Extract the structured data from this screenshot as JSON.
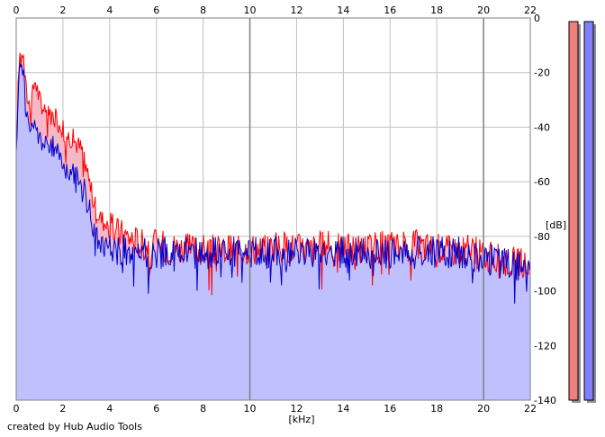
{
  "chart_data": {
    "type": "area",
    "x_unit": "[kHz]",
    "y_unit": "[dB]",
    "xlim": [
      0,
      22
    ],
    "ylim": [
      -140,
      0
    ],
    "x_ticks": [
      0,
      2,
      4,
      6,
      8,
      10,
      12,
      14,
      16,
      18,
      20,
      22
    ],
    "x_ticks_top": [
      0,
      2,
      4,
      6,
      8,
      10,
      12,
      14,
      16,
      18,
      20,
      22
    ],
    "y_ticks": [
      0,
      -20,
      -40,
      -60,
      -80,
      -100,
      -120,
      -140
    ],
    "grid": true,
    "series": [
      {
        "color": "#ff0000",
        "fill": "#f4b8c6",
        "x": [
          0,
          0.1,
          0.2,
          0.3,
          0.4,
          0.5,
          0.6,
          0.7,
          0.8,
          1,
          1.2,
          1.4,
          1.6,
          1.8,
          2,
          2.2,
          2.4,
          2.6,
          2.8,
          3,
          3.2,
          3.4,
          3.6,
          3.8,
          4,
          4.5,
          5,
          5.5,
          6,
          6.5,
          7,
          7.5,
          8,
          8.5,
          9,
          9.5,
          10,
          10.5,
          11,
          11.5,
          12,
          12.5,
          13,
          13.5,
          14,
          14.5,
          15,
          15.5,
          16,
          16.5,
          17,
          17.5,
          18,
          18.5,
          19,
          19.5,
          20,
          20.5,
          21,
          21.5,
          22
        ],
        "values": [
          -52,
          -20,
          -9,
          -14,
          -25,
          -30,
          -32,
          -28,
          -22,
          -30,
          -33,
          -35,
          -36,
          -38,
          -41,
          -43,
          -44,
          -46,
          -48,
          -54,
          -63,
          -70,
          -73,
          -75,
          -77,
          -79,
          -81,
          -83,
          -83,
          -84,
          -84,
          -85,
          -85,
          -85,
          -85,
          -85,
          -84,
          -85,
          -84,
          -84,
          -84,
          -85,
          -84,
          -84,
          -84,
          -85,
          -84,
          -84,
          -84,
          -84,
          -83,
          -84,
          -84,
          -85,
          -85,
          -85,
          -87,
          -88,
          -89,
          -90,
          -91
        ]
      },
      {
        "color": "#0000cc",
        "fill": "#c0c0ff",
        "x": [
          0,
          0.1,
          0.2,
          0.3,
          0.4,
          0.5,
          0.6,
          0.7,
          0.8,
          1,
          1.2,
          1.4,
          1.6,
          1.8,
          2,
          2.2,
          2.4,
          2.6,
          2.8,
          3,
          3.2,
          3.4,
          3.6,
          3.8,
          4,
          4.5,
          5,
          5.5,
          6,
          6.5,
          7,
          7.5,
          8,
          8.5,
          9,
          9.5,
          10,
          10.5,
          11,
          11.5,
          12,
          12.5,
          13,
          13.5,
          14,
          14.5,
          15,
          15.5,
          16,
          16.5,
          17,
          17.5,
          18,
          18.5,
          19,
          19.5,
          20,
          20.5,
          21,
          21.5,
          22
        ],
        "values": [
          -52,
          -25,
          -14,
          -20,
          -32,
          -38,
          -40,
          -42,
          -40,
          -44,
          -46,
          -48,
          -47,
          -50,
          -52,
          -55,
          -57,
          -58,
          -60,
          -64,
          -73,
          -80,
          -82,
          -84,
          -84,
          -85,
          -86,
          -86,
          -86,
          -86,
          -86,
          -86,
          -86,
          -86,
          -86,
          -86,
          -86,
          -86,
          -86,
          -86,
          -86,
          -86,
          -86,
          -86,
          -86,
          -86,
          -86,
          -86,
          -86,
          -86,
          -86,
          -86,
          -86,
          -86,
          -86,
          -87,
          -88,
          -89,
          -90,
          -91,
          -92
        ]
      }
    ],
    "level_meters": [
      {
        "color": "#f08080"
      },
      {
        "color": "#8080ff"
      }
    ]
  },
  "footer": {
    "credit": "created by Hub Audio Tools"
  }
}
